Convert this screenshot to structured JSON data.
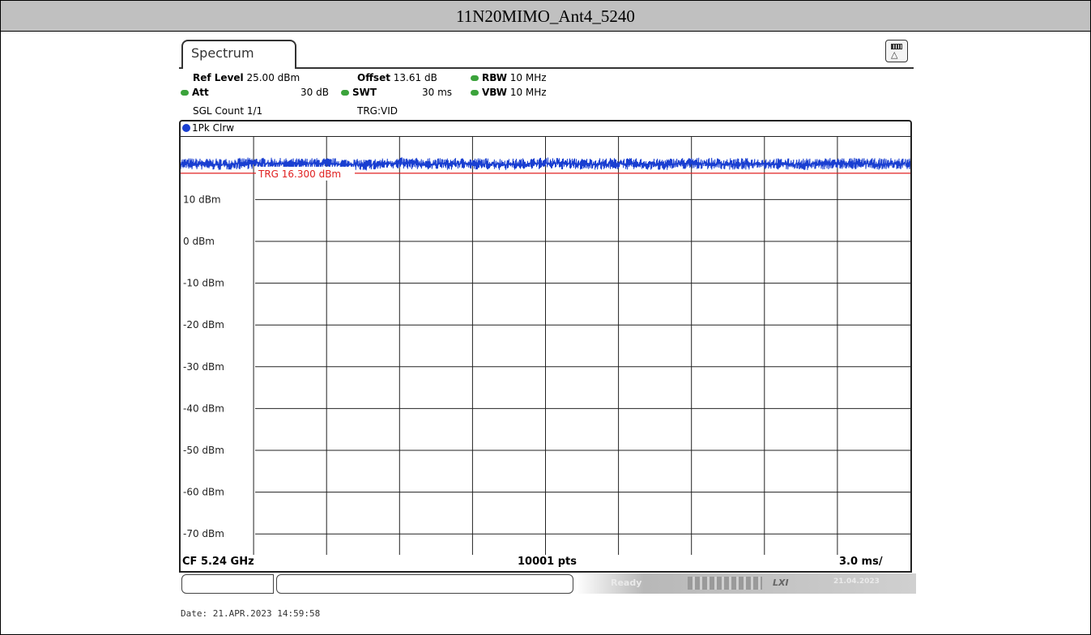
{
  "page_title": "11N20MIMO_Ant4_5240",
  "instrument": {
    "tab_label": "Spectrum",
    "ref_level_label": "Ref Level",
    "ref_level_value": "25.00 dBm",
    "offset_label": "Offset",
    "offset_value": "13.61 dB",
    "rbw_label": "RBW",
    "rbw_value": "10 MHz",
    "att_label": "Att",
    "att_value": "30 dB",
    "swt_label": "SWT",
    "swt_value": "30 ms",
    "vbw_label": "VBW",
    "vbw_value": "10 MHz",
    "sgl_count": "SGL Count 1/1",
    "trigger": "TRG:VID",
    "trace_label": "1Pk Clrw"
  },
  "footer": {
    "center_freq": "CF 5.24 GHz",
    "points": "10001 pts",
    "time_div": "3.0 ms/",
    "status": "Ready",
    "lxi": "LXI",
    "status_date": "21.04.2023"
  },
  "date_stamp": "Date: 21.APR.2023  14:59:58",
  "colors": {
    "trace": "#1a3fd1",
    "trigger_line": "#e02020",
    "led": "#3ba33b"
  },
  "chart_data": {
    "type": "line",
    "x_unit": "ms",
    "x_range": [
      0,
      30
    ],
    "ylim": [
      -75,
      25
    ],
    "y_ticks": [
      "10 dBm",
      "0 dBm",
      "-10 dBm",
      "-20 dBm",
      "-30 dBm",
      "-40 dBm",
      "-50 dBm",
      "-60 dBm",
      "-70 dBm"
    ],
    "y_tick_values": [
      10,
      0,
      -10,
      -20,
      -30,
      -40,
      -50,
      -60,
      -70
    ],
    "grid": true,
    "trigger_level": 16.3,
    "trigger_label": "TRG  16.300 dBm",
    "series": [
      {
        "name": "1Pk Clrw",
        "x": [
          0,
          1.5,
          3,
          4.5,
          6,
          7.5,
          9,
          10.5,
          12,
          13.5,
          15,
          16.5,
          18,
          19.5,
          21,
          22.5,
          24,
          25.5,
          27,
          28.5,
          30
        ],
        "values": [
          18.6,
          18.4,
          18.7,
          18.5,
          18.6,
          18.3,
          18.7,
          18.5,
          18.6,
          18.4,
          18.7,
          18.5,
          18.6,
          18.4,
          18.7,
          18.5,
          18.6,
          18.4,
          18.7,
          18.5,
          18.6
        ]
      }
    ]
  }
}
